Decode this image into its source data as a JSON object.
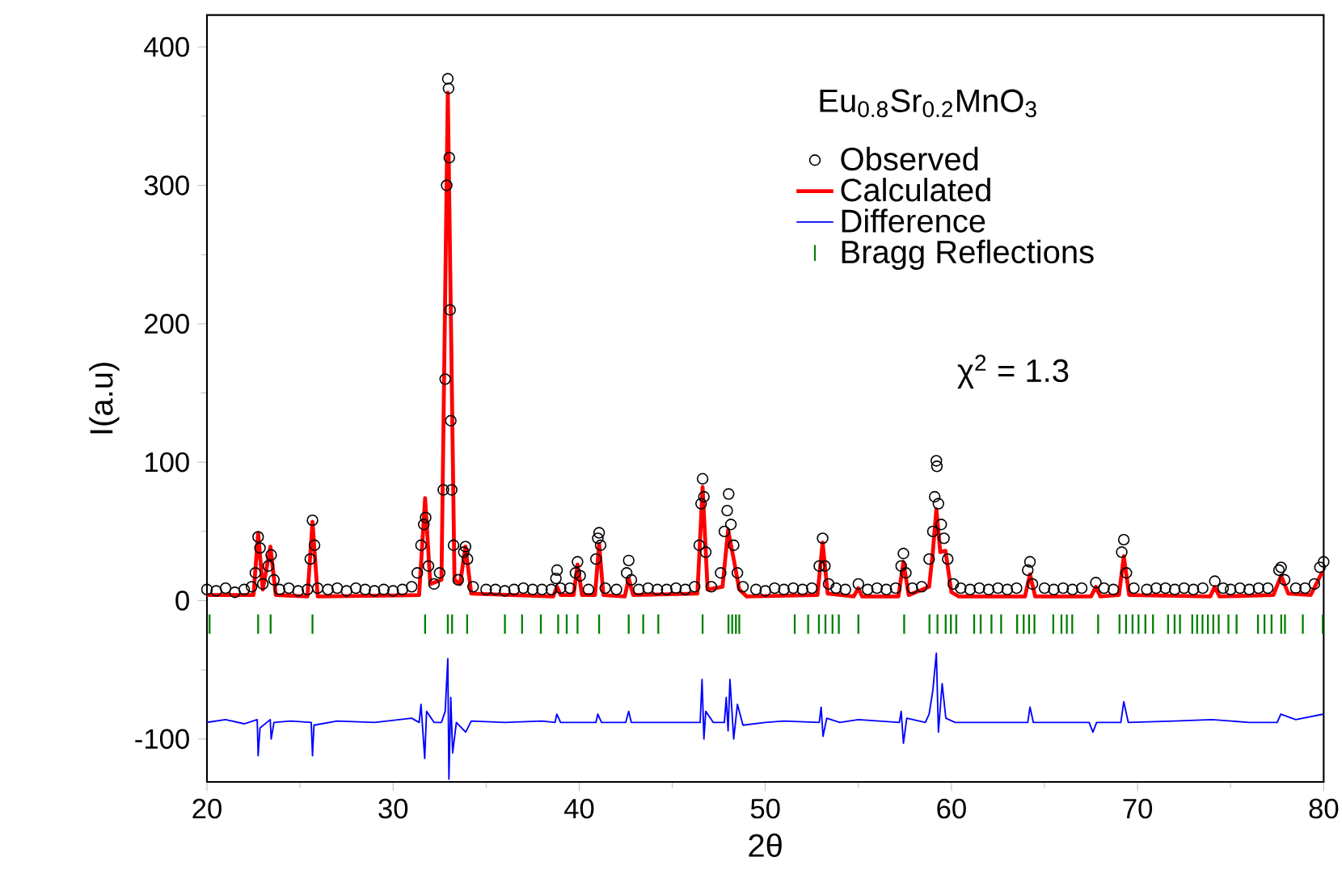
{
  "chart_data": {
    "type": "scatter",
    "title": "Eu$_{0.8}$Sr$_{0.2}$MnO$_{3}$",
    "xlabel": "2θ",
    "ylabel": "I(a.u)",
    "annotations": [
      "χ$^{2}$ = 1.3"
    ],
    "xlim": [
      20,
      80
    ],
    "ylim": [
      -131,
      423
    ],
    "xticks": [
      20,
      30,
      40,
      50,
      60,
      70,
      80
    ],
    "yticks": [
      -100,
      0,
      100,
      200,
      300,
      400
    ],
    "legend": "top right",
    "series": [
      {
        "name": "Observed",
        "marker": "circle",
        "color": "#000000",
        "x": [
          20.0,
          20.5,
          21.0,
          21.5,
          22.0,
          22.4,
          22.6,
          22.75,
          22.85,
          23.0,
          23.3,
          23.45,
          23.6,
          23.9,
          24.4,
          24.9,
          25.4,
          25.55,
          25.67,
          25.78,
          25.95,
          26.5,
          27.0,
          27.5,
          28.0,
          28.5,
          29.0,
          29.5,
          30.0,
          30.5,
          31.0,
          31.3,
          31.5,
          31.65,
          31.75,
          31.9,
          32.2,
          32.5,
          32.7,
          32.8,
          32.88,
          32.94,
          32.98,
          33.02,
          33.06,
          33.1,
          33.15,
          33.25,
          33.5,
          33.8,
          33.89,
          34.0,
          34.3,
          35.0,
          35.5,
          36.0,
          36.5,
          37.0,
          37.5,
          38.0,
          38.5,
          38.75,
          38.81,
          39.0,
          39.5,
          39.8,
          39.91,
          40.05,
          40.5,
          40.9,
          41.0,
          41.07,
          41.15,
          41.4,
          42.0,
          42.55,
          42.66,
          42.8,
          43.2,
          43.7,
          44.2,
          44.7,
          45.2,
          45.7,
          46.2,
          46.45,
          46.55,
          46.63,
          46.7,
          46.8,
          47.1,
          47.6,
          47.8,
          47.95,
          48.03,
          48.15,
          48.3,
          48.5,
          48.8,
          49.5,
          50.0,
          50.5,
          51.0,
          51.5,
          52.0,
          52.5,
          52.9,
          53.08,
          53.2,
          53.4,
          53.8,
          54.3,
          55.0,
          55.5,
          56.0,
          56.5,
          57.0,
          57.3,
          57.42,
          57.55,
          57.9,
          58.4,
          58.8,
          59.0,
          59.1,
          59.19,
          59.22,
          59.3,
          59.45,
          59.6,
          59.8,
          60.1,
          60.5,
          61.0,
          61.5,
          62.0,
          62.5,
          63.0,
          63.5,
          64.1,
          64.22,
          64.35,
          65.0,
          65.5,
          66.0,
          66.5,
          67.0,
          67.76,
          68.2,
          68.7,
          69.15,
          69.26,
          69.4,
          69.8,
          70.5,
          71.0,
          71.5,
          72.0,
          72.5,
          73.0,
          73.5,
          74.15,
          74.6,
          75.0,
          75.5,
          76.0,
          76.5,
          77.0,
          77.6,
          77.71,
          77.9,
          78.5,
          79.0,
          79.5,
          79.8,
          80.0
        ],
        "values": [
          8,
          7,
          9,
          6,
          8,
          10,
          20,
          46,
          38,
          12,
          25,
          33,
          15,
          8,
          9,
          7,
          8,
          30,
          58,
          40,
          9,
          8,
          9,
          7,
          9,
          8,
          7,
          8,
          7,
          8,
          10,
          20,
          40,
          55,
          60,
          25,
          12,
          20,
          80,
          160,
          300,
          377,
          370,
          320,
          210,
          130,
          80,
          40,
          15,
          35,
          39,
          30,
          10,
          8,
          8,
          7,
          8,
          9,
          8,
          8,
          8,
          16,
          22,
          9,
          9,
          20,
          28,
          18,
          8,
          30,
          45,
          49,
          40,
          9,
          8,
          20,
          29,
          15,
          8,
          9,
          8,
          8,
          9,
          8,
          10,
          40,
          70,
          88,
          75,
          35,
          10,
          20,
          50,
          65,
          77,
          55,
          40,
          20,
          10,
          8,
          7,
          9,
          8,
          9,
          8,
          9,
          25,
          45,
          25,
          12,
          9,
          8,
          12,
          8,
          9,
          8,
          9,
          25,
          34,
          20,
          9,
          10,
          30,
          50,
          75,
          101,
          97,
          70,
          55,
          45,
          30,
          12,
          9,
          8,
          9,
          8,
          9,
          8,
          9,
          22,
          28,
          12,
          9,
          8,
          9,
          8,
          9,
          13,
          9,
          8,
          35,
          44,
          20,
          9,
          8,
          9,
          9,
          8,
          9,
          8,
          9,
          14,
          9,
          8,
          9,
          8,
          9,
          9,
          22,
          24,
          15,
          9,
          9,
          12,
          24,
          28
        ]
      },
      {
        "name": "Calculated",
        "type": "line",
        "color": "#ff0000",
        "x": [
          20,
          22.5,
          22.75,
          23.0,
          23.41,
          23.7,
          25.4,
          25.67,
          25.95,
          31.4,
          31.72,
          32.0,
          32.6,
          32.94,
          33.3,
          33.6,
          33.89,
          34.2,
          38.6,
          38.81,
          39.0,
          39.7,
          39.91,
          40.15,
          40.85,
          41.07,
          41.3,
          42.45,
          42.66,
          42.9,
          46.35,
          46.63,
          46.9,
          47.7,
          48.0,
          48.3,
          48.6,
          49.0,
          52.8,
          53.08,
          53.35,
          54.75,
          54.99,
          55.2,
          57.15,
          57.42,
          57.7,
          58.8,
          59.0,
          59.19,
          59.4,
          59.68,
          60.0,
          60.4,
          63.95,
          64.22,
          64.5,
          67.5,
          67.76,
          68.0,
          69.0,
          69.26,
          69.55,
          73.9,
          74.15,
          74.4,
          77.3,
          77.71,
          78.1,
          79.3,
          79.9,
          80
        ],
        "values": [
          4,
          4,
          49,
          8,
          39,
          4,
          3,
          57,
          3,
          4,
          74,
          12,
          15,
          367,
          15,
          12,
          39,
          5,
          3,
          10,
          4,
          4,
          26,
          4,
          4,
          41,
          4,
          3,
          16,
          4,
          5,
          82,
          8,
          10,
          51,
          30,
          8,
          3,
          4,
          42,
          5,
          3,
          9,
          3,
          3,
          28,
          4,
          10,
          35,
          66,
          35,
          36,
          6,
          3,
          3,
          19,
          3,
          3,
          10,
          3,
          4,
          32,
          4,
          3,
          10,
          3,
          4,
          18,
          5,
          4,
          20,
          20
        ]
      },
      {
        "name": "Difference",
        "type": "line",
        "color": "#0000ff",
        "x": [
          20,
          21,
          22,
          22.7,
          22.75,
          22.85,
          23.4,
          23.45,
          23.6,
          24.5,
          25.6,
          25.67,
          25.75,
          27,
          29,
          31,
          31.4,
          31.5,
          31.7,
          31.8,
          32.2,
          32.6,
          32.8,
          32.94,
          33.0,
          33.1,
          33.2,
          33.4,
          33.9,
          34.2,
          36,
          38,
          38.7,
          38.8,
          39,
          40.9,
          41,
          41.2,
          42.5,
          42.66,
          42.8,
          44,
          46.5,
          46.6,
          46.7,
          46.8,
          47.2,
          47.8,
          47.9,
          48.0,
          48.1,
          48.3,
          48.5,
          48.8,
          50,
          51,
          52.9,
          53.0,
          53.1,
          53.3,
          54,
          55,
          57.2,
          57.3,
          57.42,
          57.6,
          58.6,
          58.8,
          59.0,
          59.19,
          59.3,
          59.5,
          59.7,
          60.2,
          62,
          64.1,
          64.22,
          64.4,
          66,
          67.4,
          67.6,
          67.8,
          69.1,
          69.26,
          69.5,
          72,
          74,
          76,
          77.5,
          77.7,
          78.5,
          80
        ],
        "values": [
          -88,
          -86,
          -89,
          -86,
          -112,
          -92,
          -86,
          -100,
          -88,
          -87,
          -88,
          -112,
          -90,
          -87,
          -88,
          -85,
          -88,
          -75,
          -114,
          -80,
          -88,
          -88,
          -80,
          -42,
          -129,
          -70,
          -110,
          -88,
          -95,
          -87,
          -88,
          -87,
          -88,
          -82,
          -88,
          -88,
          -82,
          -88,
          -88,
          -80,
          -88,
          -88,
          -88,
          -57,
          -100,
          -80,
          -88,
          -88,
          -70,
          -94,
          -57,
          -100,
          -75,
          -90,
          -88,
          -87,
          -88,
          -77,
          -98,
          -85,
          -88,
          -86,
          -88,
          -80,
          -103,
          -85,
          -88,
          -82,
          -65,
          -38,
          -95,
          -60,
          -85,
          -88,
          -88,
          -88,
          -77,
          -88,
          -88,
          -88,
          -95,
          -88,
          -88,
          -73,
          -88,
          -87,
          -86,
          -88,
          -88,
          -82,
          -86,
          -82
        ]
      },
      {
        "name": "Bragg Reflections",
        "type": "bar",
        "color": "#008000",
        "x": [
          20.14,
          22.75,
          23.42,
          25.67,
          31.72,
          32.94,
          33.17,
          33.98,
          36.01,
          36.93,
          37.94,
          38.87,
          39.33,
          39.91,
          41.07,
          42.66,
          43.44,
          44.25,
          46.63,
          48.02,
          48.22,
          48.42,
          48.6,
          51.58,
          52.3,
          52.88,
          53.23,
          53.61,
          53.95,
          55.0,
          57.46,
          58.82,
          59.25,
          59.69,
          59.97,
          60.26,
          61.22,
          61.57,
          62.15,
          62.67,
          63.53,
          63.88,
          64.17,
          64.46,
          65.47,
          65.91,
          66.2,
          66.49,
          67.88,
          69.03,
          69.38,
          69.73,
          70.05,
          70.42,
          70.83,
          71.64,
          71.99,
          72.28,
          72.94,
          73.2,
          73.49,
          73.78,
          74.07,
          74.36,
          74.88,
          75.32,
          76.47,
          76.82,
          77.2,
          77.72,
          77.92,
          78.88,
          79.95
        ],
        "base": [
          -24,
          -24,
          -24,
          -24,
          -24,
          -24,
          -24,
          -24,
          -24,
          -24,
          -24,
          -24,
          -24,
          -24,
          -24,
          -24,
          -24,
          -24,
          -24,
          -24,
          -24,
          -24,
          -24,
          -24,
          -24,
          -24,
          -24,
          -24,
          -24,
          -24,
          -24,
          -24,
          -24,
          -24,
          -24,
          -24,
          -24,
          -24,
          -24,
          -24,
          -24,
          -24,
          -24,
          -24,
          -24,
          -24,
          -24,
          -24,
          -24,
          -24,
          -24,
          -24,
          -24,
          -24,
          -24,
          -24,
          -24,
          -24,
          -24,
          -24,
          -24,
          -24,
          -24,
          -24,
          -24,
          -24,
          -24,
          -24,
          -24,
          -24,
          -24,
          -24,
          -24
        ],
        "values": [
          14,
          14,
          14,
          14,
          14,
          14,
          14,
          14,
          14,
          14,
          14,
          14,
          14,
          14,
          14,
          14,
          14,
          14,
          14,
          14,
          14,
          14,
          14,
          14,
          14,
          14,
          14,
          14,
          14,
          14,
          14,
          14,
          14,
          14,
          14,
          14,
          14,
          14,
          14,
          14,
          14,
          14,
          14,
          14,
          14,
          14,
          14,
          14,
          14,
          14,
          14,
          14,
          14,
          14,
          14,
          14,
          14,
          14,
          14,
          14,
          14,
          14,
          14,
          14,
          14,
          14,
          14,
          14,
          14,
          14,
          14,
          14,
          14
        ]
      }
    ]
  }
}
